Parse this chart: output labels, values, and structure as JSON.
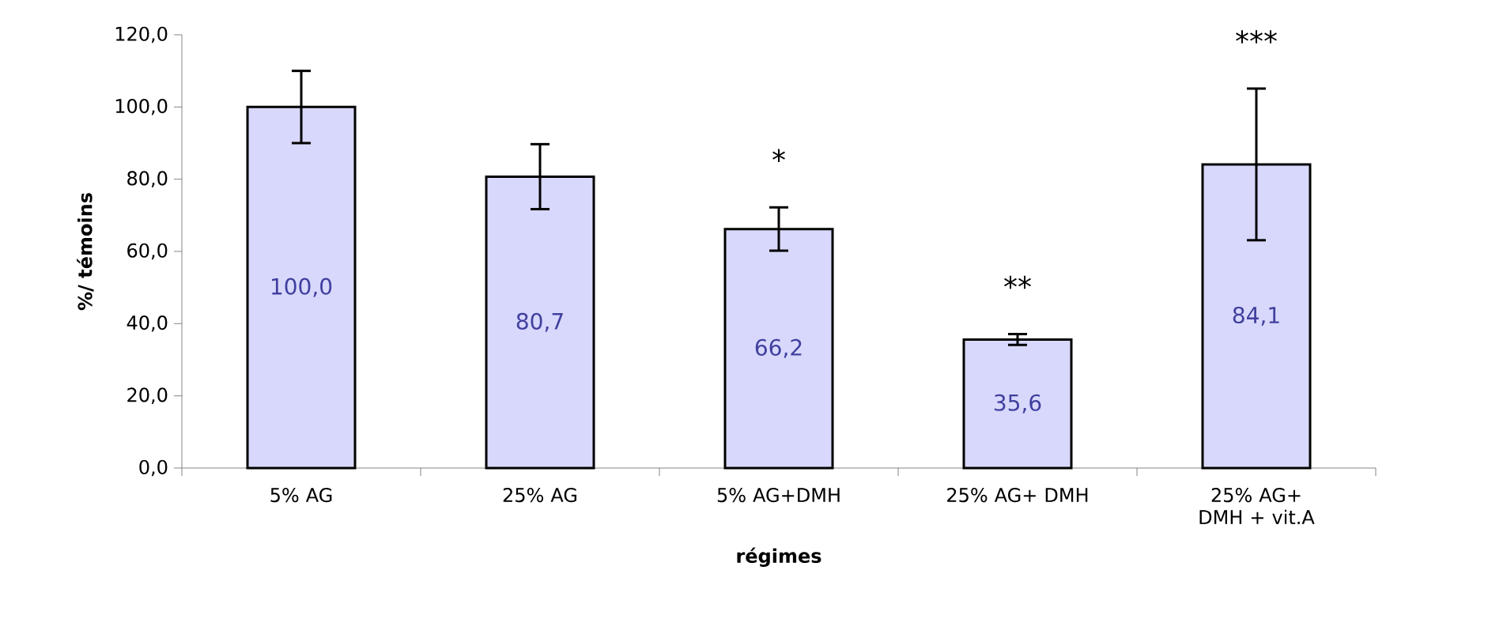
{
  "chart_data": {
    "type": "bar",
    "xlabel": "régimes",
    "ylabel": "%/ témoins",
    "categories": [
      "5% AG",
      "25% AG",
      "5% AG+DMH",
      "25% AG+ DMH",
      "25% AG+ DMH + vit.A"
    ],
    "values": [
      100.0,
      80.7,
      66.2,
      35.6,
      84.1
    ],
    "errors": [
      10,
      9,
      6,
      1.5,
      21
    ],
    "value_labels": [
      "100,0",
      "80,7",
      "66,2",
      "35,6",
      "84,1"
    ],
    "color": "#d8d8fc",
    "ylim": [
      0,
      120
    ],
    "yticks": [
      {
        "value": 0,
        "label": "0,0"
      },
      {
        "value": 20,
        "label": "20,0"
      },
      {
        "value": 40,
        "label": "40,0"
      },
      {
        "value": 60,
        "label": "60,0"
      },
      {
        "value": 80,
        "label": "80,0"
      },
      {
        "value": 100,
        "label": "100,0"
      },
      {
        "value": 120,
        "label": "120,0"
      }
    ],
    "grid": false,
    "annotations": [
      "*",
      "**",
      "***"
    ]
  }
}
